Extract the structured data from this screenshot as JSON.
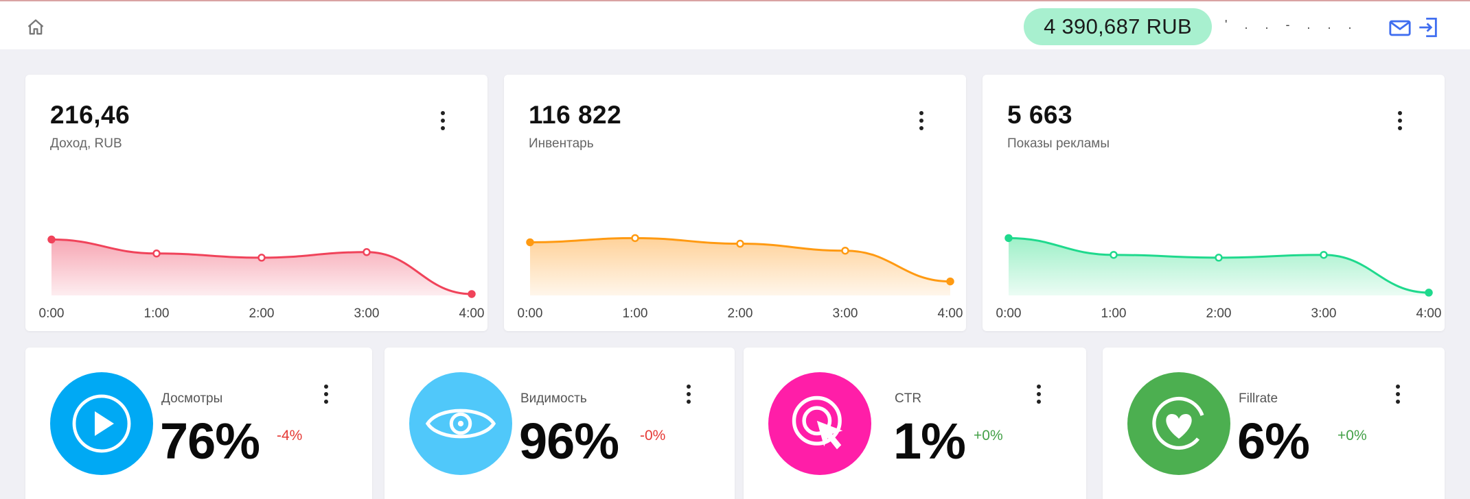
{
  "topbar": {
    "balance": "4 390,687 RUB",
    "username": "' . . - . . ."
  },
  "cards": [
    {
      "value": "216,46",
      "label": "Доход, RUB",
      "color": "#f0435a",
      "fill": "#f7a7b4"
    },
    {
      "value": "116 822",
      "label": "Инвентарь",
      "color": "#ff9a12",
      "fill": "#ffd29a"
    },
    {
      "value": "5 663",
      "label": "Показы рекламы",
      "color": "#1fd98d",
      "fill": "#9ef0c8"
    }
  ],
  "chart_data": [
    {
      "type": "area",
      "title": "Доход, RUB",
      "x": [
        "0:00",
        "1:00",
        "2:00",
        "3:00",
        "4:00"
      ],
      "values": [
        40,
        30,
        27,
        31,
        1
      ],
      "ylim": [
        0,
        50
      ],
      "grid": false
    },
    {
      "type": "area",
      "title": "Инвентарь",
      "x": [
        "0:00",
        "1:00",
        "2:00",
        "3:00",
        "4:00"
      ],
      "values": [
        38,
        41,
        37,
        32,
        10
      ],
      "ylim": [
        0,
        50
      ],
      "grid": false
    },
    {
      "type": "area",
      "title": "Показы рекламы",
      "x": [
        "0:00",
        "1:00",
        "2:00",
        "3:00",
        "4:00"
      ],
      "values": [
        41,
        29,
        27,
        29,
        2
      ],
      "ylim": [
        0,
        50
      ],
      "grid": false
    }
  ],
  "kpis": [
    {
      "title": "Досмотры",
      "value": "76%",
      "delta": "-4%",
      "delta_color": "#e53935",
      "circle_color": "#00a9f4",
      "icon": "play-icon"
    },
    {
      "title": "Видимость",
      "value": "96%",
      "delta": "-0%",
      "delta_color": "#e53935",
      "circle_color": "#50c8fa",
      "icon": "eye-icon"
    },
    {
      "title": "CTR",
      "value": "1%",
      "delta": "+0%",
      "delta_color": "#43a047",
      "circle_color": "#ff1ea8",
      "icon": "click-target-icon"
    },
    {
      "title": "Fillrate",
      "value": "6%",
      "delta": "+0%",
      "delta_color": "#43a047",
      "circle_color": "#4caf50",
      "icon": "heart-icon"
    }
  ]
}
